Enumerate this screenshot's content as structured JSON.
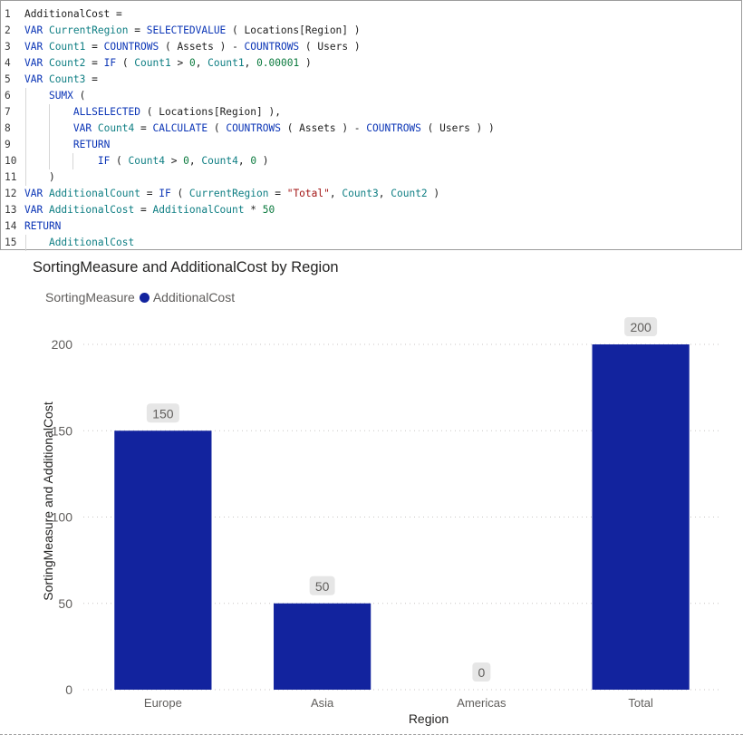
{
  "editor": {
    "line_numbers": [
      "1",
      "2",
      "3",
      "4",
      "5",
      "6",
      "7",
      "8",
      "9",
      "10",
      "11",
      "12",
      "13",
      "14",
      "15"
    ],
    "tokens": [
      [
        [
          "plain",
          "AdditionalCost ="
        ]
      ],
      [
        [
          "kw",
          "VAR "
        ],
        [
          "vr",
          "CurrentRegion"
        ],
        [
          "plain",
          " = "
        ],
        [
          "fn",
          "SELECTEDVALUE"
        ],
        [
          "pn",
          " ( "
        ],
        [
          "plain",
          "Locations"
        ],
        [
          "plain",
          "[Region]"
        ],
        [
          "pn",
          " )"
        ]
      ],
      [
        [
          "kw",
          "VAR "
        ],
        [
          "vr",
          "Count1"
        ],
        [
          "plain",
          " = "
        ],
        [
          "fn",
          "COUNTROWS"
        ],
        [
          "pn",
          " ( "
        ],
        [
          "plain",
          "Assets"
        ],
        [
          "pn",
          " ) - "
        ],
        [
          "fn",
          "COUNTROWS"
        ],
        [
          "pn",
          " ( "
        ],
        [
          "plain",
          "Users"
        ],
        [
          "pn",
          " )"
        ]
      ],
      [
        [
          "kw",
          "VAR "
        ],
        [
          "vr",
          "Count2"
        ],
        [
          "plain",
          " = "
        ],
        [
          "fn",
          "IF"
        ],
        [
          "pn",
          " ( "
        ],
        [
          "vr",
          "Count1"
        ],
        [
          "plain",
          " > "
        ],
        [
          "num",
          "0"
        ],
        [
          "plain",
          ", "
        ],
        [
          "vr",
          "Count1"
        ],
        [
          "plain",
          ", "
        ],
        [
          "num",
          "0.00001"
        ],
        [
          "pn",
          " )"
        ]
      ],
      [
        [
          "kw",
          "VAR "
        ],
        [
          "vr",
          "Count3"
        ],
        [
          "plain",
          " ="
        ]
      ],
      [
        [
          "plain",
          "    "
        ],
        [
          "fn",
          "SUMX"
        ],
        [
          "pn",
          " ("
        ]
      ],
      [
        [
          "plain",
          "        "
        ],
        [
          "fn",
          "ALLSELECTED"
        ],
        [
          "pn",
          " ( "
        ],
        [
          "plain",
          "Locations"
        ],
        [
          "plain",
          "[Region]"
        ],
        [
          "pn",
          " ),"
        ]
      ],
      [
        [
          "plain",
          "        "
        ],
        [
          "kw",
          "VAR "
        ],
        [
          "vr",
          "Count4"
        ],
        [
          "plain",
          " = "
        ],
        [
          "fn",
          "CALCULATE"
        ],
        [
          "pn",
          " ( "
        ],
        [
          "fn",
          "COUNTROWS"
        ],
        [
          "pn",
          " ( "
        ],
        [
          "plain",
          "Assets"
        ],
        [
          "pn",
          " ) - "
        ],
        [
          "fn",
          "COUNTROWS"
        ],
        [
          "pn",
          " ( "
        ],
        [
          "plain",
          "Users"
        ],
        [
          "pn",
          " ) )"
        ]
      ],
      [
        [
          "plain",
          "        "
        ],
        [
          "kw",
          "RETURN"
        ]
      ],
      [
        [
          "plain",
          "            "
        ],
        [
          "fn",
          "IF"
        ],
        [
          "pn",
          " ( "
        ],
        [
          "vr",
          "Count4"
        ],
        [
          "plain",
          " > "
        ],
        [
          "num",
          "0"
        ],
        [
          "plain",
          ", "
        ],
        [
          "vr",
          "Count4"
        ],
        [
          "plain",
          ", "
        ],
        [
          "num",
          "0"
        ],
        [
          "pn",
          " )"
        ]
      ],
      [
        [
          "plain",
          "    "
        ],
        [
          "pn",
          ")"
        ]
      ],
      [
        [
          "kw",
          "VAR "
        ],
        [
          "vr",
          "AdditionalCount"
        ],
        [
          "plain",
          " = "
        ],
        [
          "fn",
          "IF"
        ],
        [
          "pn",
          " ( "
        ],
        [
          "vr",
          "CurrentRegion"
        ],
        [
          "plain",
          " = "
        ],
        [
          "str",
          "\"Total\""
        ],
        [
          "plain",
          ", "
        ],
        [
          "vr",
          "Count3"
        ],
        [
          "plain",
          ", "
        ],
        [
          "vr",
          "Count2"
        ],
        [
          "pn",
          " )"
        ]
      ],
      [
        [
          "kw",
          "VAR "
        ],
        [
          "vr",
          "AdditionalCost"
        ],
        [
          "plain",
          " = "
        ],
        [
          "vr",
          "AdditionalCount"
        ],
        [
          "plain",
          " * "
        ],
        [
          "num",
          "50"
        ]
      ],
      [
        [
          "kw",
          "RETURN"
        ]
      ],
      [
        [
          "plain",
          "    "
        ],
        [
          "vr",
          "AdditionalCost"
        ]
      ]
    ]
  },
  "chart": {
    "legend_label_1": "SortingMeasure",
    "legend_label_2": "AdditionalCost",
    "colors": {
      "bar": "#12239e",
      "grid": "#c8c6c4",
      "label_bg": "#e6e6e6",
      "text": "#605e5c"
    }
  },
  "chart_data": {
    "type": "bar",
    "title": "SortingMeasure and AdditionalCost by Region",
    "xlabel": "Region",
    "ylabel": "SortingMeasure and AdditionalCost",
    "categories": [
      "Europe",
      "Asia",
      "Americas",
      "Total"
    ],
    "values": [
      150,
      50,
      0,
      200
    ],
    "data_labels": [
      "150",
      "50",
      "0",
      "200"
    ],
    "yticks": [
      0,
      50,
      100,
      150,
      200
    ],
    "ytick_labels": [
      "0",
      "50",
      "100",
      "150",
      "200"
    ],
    "ylim": [
      0,
      200
    ],
    "grid": true,
    "legend": "top-left"
  }
}
